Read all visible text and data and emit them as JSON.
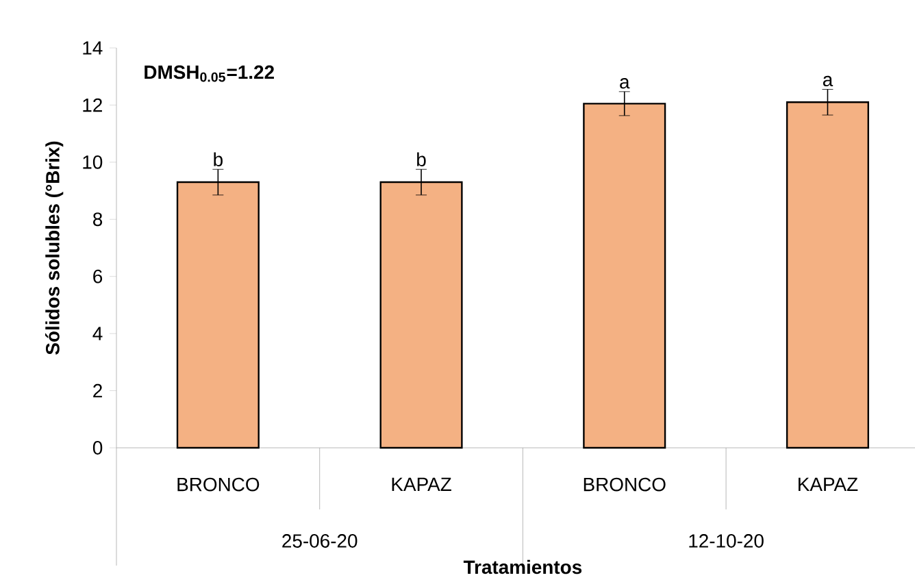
{
  "chart_data": {
    "type": "bar",
    "xlabel": "Tratamientos",
    "ylabel": "Sólidos solubles (°Brix)",
    "categories": [
      "BRONCO",
      "KAPAZ",
      "BRONCO",
      "KAPAZ"
    ],
    "values": [
      9.3,
      9.3,
      12.05,
      12.1
    ],
    "errors": [
      0.45,
      0.45,
      0.42,
      0.45
    ],
    "color": "#f4b183",
    "ylim": [
      0,
      14
    ],
    "yticks": [
      0,
      2,
      4,
      6,
      8,
      10,
      12,
      14
    ],
    "annotations": [
      "DMSH$_{0.05}$=1.22",
      "b",
      "b",
      "a",
      "a",
      "25-06-20",
      "12-10-20"
    ]
  }
}
